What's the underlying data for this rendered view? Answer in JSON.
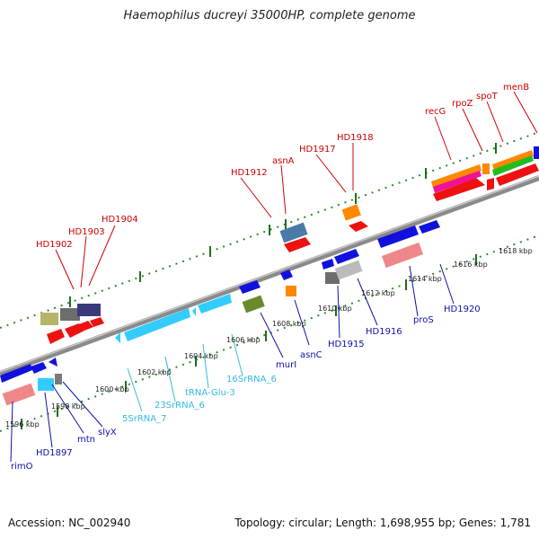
{
  "title": "Haemophilus ducreyi 35000HP, complete genome",
  "footer": {
    "accession": "Accession: NC_002940",
    "stats": "Topology: circular; Length: 1,698,955 bp; Genes: 1,781"
  },
  "colors": {
    "top_label": "#cc0000",
    "bottom_label": "#1010aa",
    "rna_label": "#33bbdd",
    "backbone": "#8a8a8a",
    "tick": "#2e8b2e"
  },
  "kbp_labels": [
    "1596 kbp",
    "1598 kbp",
    "1600 kbp",
    "1602 kbp",
    "1604 kbp",
    "1606 kbp",
    "1608 kbp",
    "1610 kbp",
    "1612 kbp",
    "1614 kbp",
    "1616 kbp",
    "1618 kbp"
  ],
  "top_labels": [
    "HD1902",
    "HD1903",
    "HD1904",
    "HD1912",
    "asnA",
    "HD1917",
    "HD1918",
    "recG",
    "rpoZ",
    "spoT",
    "menB"
  ],
  "bottom_labels": [
    "rimO",
    "HD1897",
    "mtn",
    "slyX",
    "murI",
    "asnC",
    "HD1915",
    "HD1916",
    "proS",
    "HD1920"
  ],
  "rna_labels": [
    "5SrRNA_7",
    "23SrRNA_6",
    "tRNA-Glu-3",
    "16SrRNA_6"
  ]
}
